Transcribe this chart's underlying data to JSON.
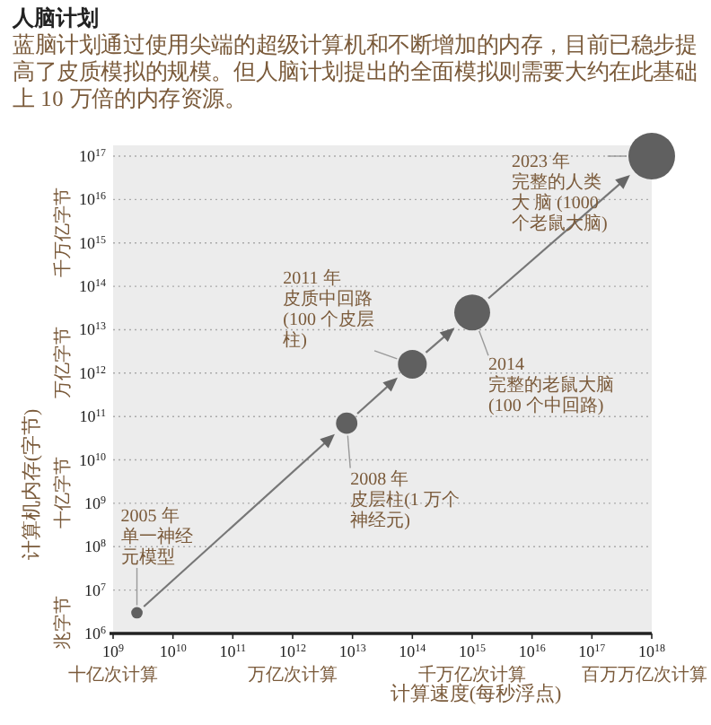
{
  "chart_data": {
    "type": "bubble",
    "title": "人脑计划",
    "subtitle": "蓝脑计划通过使用尖端的超级计算机和不断增加的内存，目前已稳步提高了皮质模拟的规模。但人脑计划提出的全面模拟则需要大约在此基础上 10 万倍的内存资源。",
    "xlabel": "计算速度(每秒浮点)",
    "ylabel": "计算机内存(字节)",
    "x": [
      2500000000.0,
      8000000000000.0,
      100000000000000.0,
      1000000000000000.0,
      1e+18
    ],
    "values": [
      3000000.0,
      70000000000.0,
      1600000000000.0,
      25000000000000.0,
      1e+17
    ],
    "sizes": [
      0.06,
      0.21,
      0.38,
      0.59,
      1
    ],
    "color": "#606060",
    "log": "xy",
    "grid": "y",
    "legend": false,
    "xlim": [
      1000000000.0,
      1e+18
    ],
    "ylim": [
      1000000.0,
      1e+17
    ],
    "xticks": [
      {
        "value": 1000000000.0,
        "label": "10$^{9}$\n十亿次计算"
      },
      {
        "value": 10000000000.0,
        "label": "10$^{10}$"
      },
      {
        "value": 100000000000.0,
        "label": "10$^{11}$"
      },
      {
        "value": 1000000000000.0,
        "label": "10$^{12}$\n万亿次计算"
      },
      {
        "value": 10000000000000.0,
        "label": "10$^{13}$"
      },
      {
        "value": 100000000000000.0,
        "label": "10$^{14}$"
      },
      {
        "value": 1000000000000000.0,
        "label": "10$^{15}$\n千万亿次计算"
      },
      {
        "value": 1e+16,
        "label": "10$^{16}$"
      },
      {
        "value": 1e+17,
        "label": "10$^{17}$"
      },
      {
        "value": 1e+18,
        "label": "10$^{18}$\n百万万亿次计算"
      }
    ],
    "yticks": [
      {
        "value": 1000000.0,
        "label": "10$^{6}$"
      },
      {
        "value": 10000000.0,
        "label": "10$^{7}$"
      },
      {
        "value": 100000000.0,
        "label": "10$^{8}$"
      },
      {
        "value": 1000000000.0,
        "label": "10$^{9}$"
      },
      {
        "value": 10000000000.0,
        "label": "10$^{10}$"
      },
      {
        "value": 100000000000.0,
        "label": "10$^{11}$"
      },
      {
        "value": 1000000000000.0,
        "label": "10$^{12}$"
      },
      {
        "value": 10000000000000.0,
        "label": "10$^{13}$"
      },
      {
        "value": 100000000000000.0,
        "label": "10$^{14}$"
      },
      {
        "value": 1000000000000000.0,
        "label": "10$^{15}$"
      },
      {
        "value": 1e+16,
        "label": "10$^{16}$"
      },
      {
        "value": 1e+17,
        "label": "10$^{17}$"
      }
    ],
    "annotations": [
      {
        "text": "2005 年单一神经元模型",
        "x": 2500000000.0,
        "y": 3000000.0
      },
      {
        "text": "2008 年皮层柱(1 万个神经元)",
        "x": 8000000000000.0,
        "y": 70000000000.0
      },
      {
        "text": "2011 年皮质中回路(100 个皮层柱)",
        "x": 100000000000000.0,
        "y": 1600000000000.0
      },
      {
        "text": "2014 完整的老鼠大脑(100 个中回路)",
        "x": 1000000000000000.0,
        "y": 25000000000000.0
      },
      {
        "text": "2023 年完整的人类大 脑 (1000 个老鼠大脑)",
        "x": 1e+18,
        "y": 1e+17
      },
      "兆字节",
      "十亿字节",
      "万亿字节",
      "千万亿字节"
    ]
  }
}
